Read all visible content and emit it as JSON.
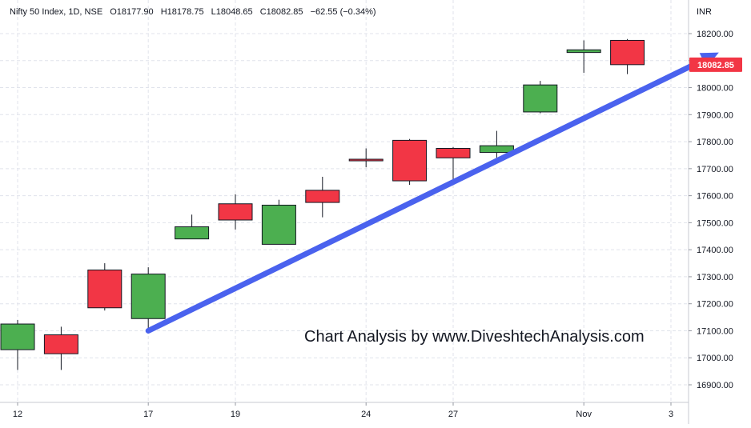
{
  "header": {
    "symbol": "Nifty 50 Index, 1D, NSE",
    "open": "O18177.90",
    "high": "H18178.75",
    "low": "L18048.65",
    "close": "C18082.85",
    "change": "−62.55 (−0.34%)"
  },
  "watermark": "Chart Analysis by www.DiveshtechAnalysis.com",
  "currency": "INR",
  "last_price_label": "18082.85",
  "colors": {
    "up": "#4caf50",
    "down": "#f23645",
    "arrow": "#4a62ee",
    "grid": "#e0e3eb",
    "text": "#131722",
    "axis": "#9598a1"
  },
  "chart_data": {
    "type": "candlestick",
    "ylim": [
      16850,
      18290
    ],
    "yticks": [
      16900,
      17000,
      17100,
      17200,
      17300,
      17400,
      17500,
      17600,
      17700,
      17800,
      17900,
      18000,
      18100,
      18200
    ],
    "ytick_labels": [
      "16900.00",
      "17000.00",
      "17100.00",
      "17200.00",
      "17300.00",
      "17400.00",
      "17500.00",
      "17600.00",
      "17700.00",
      "17800.00",
      "17900.00",
      "18000.00",
      "18100.00",
      "18200.00"
    ],
    "xticks": [
      {
        "index": 0,
        "label": "12"
      },
      {
        "index": 3,
        "label": "17"
      },
      {
        "index": 5,
        "label": "19"
      },
      {
        "index": 8,
        "label": "24"
      },
      {
        "index": 10,
        "label": "27"
      },
      {
        "index": 13,
        "label": "Nov"
      },
      {
        "index": 15,
        "label": "3"
      }
    ],
    "candles": [
      {
        "open": 17030,
        "high": 17140,
        "low": 16955,
        "close": 17125
      },
      {
        "open": 17085,
        "high": 17115,
        "low": 16955,
        "close": 17015
      },
      {
        "open": 17325,
        "high": 17350,
        "low": 17175,
        "close": 17185
      },
      {
        "open": 17145,
        "high": 17335,
        "low": 17090,
        "close": 17310
      },
      {
        "open": 17440,
        "high": 17530,
        "low": 17440,
        "close": 17485
      },
      {
        "open": 17570,
        "high": 17605,
        "low": 17475,
        "close": 17510
      },
      {
        "open": 17420,
        "high": 17585,
        "low": 17420,
        "close": 17565
      },
      {
        "open": 17620,
        "high": 17670,
        "low": 17520,
        "close": 17575
      },
      {
        "open": 17735,
        "high": 17775,
        "low": 17705,
        "close": 17730
      },
      {
        "open": 17805,
        "high": 17810,
        "low": 17640,
        "close": 17655
      },
      {
        "open": 17775,
        "high": 17780,
        "low": 17660,
        "close": 17740
      },
      {
        "open": 17760,
        "high": 17840,
        "low": 17740,
        "close": 17785
      },
      {
        "open": 17910,
        "high": 18025,
        "low": 17905,
        "close": 18010
      },
      {
        "open": 18130,
        "high": 18175,
        "low": 18055,
        "close": 18140
      },
      {
        "open": 18175,
        "high": 18180,
        "low": 18050,
        "close": 18085
      }
    ],
    "trend_arrow": {
      "start": {
        "x": 3.0,
        "y": 17100
      },
      "end": {
        "x": 16.1,
        "y": 18130
      }
    }
  }
}
